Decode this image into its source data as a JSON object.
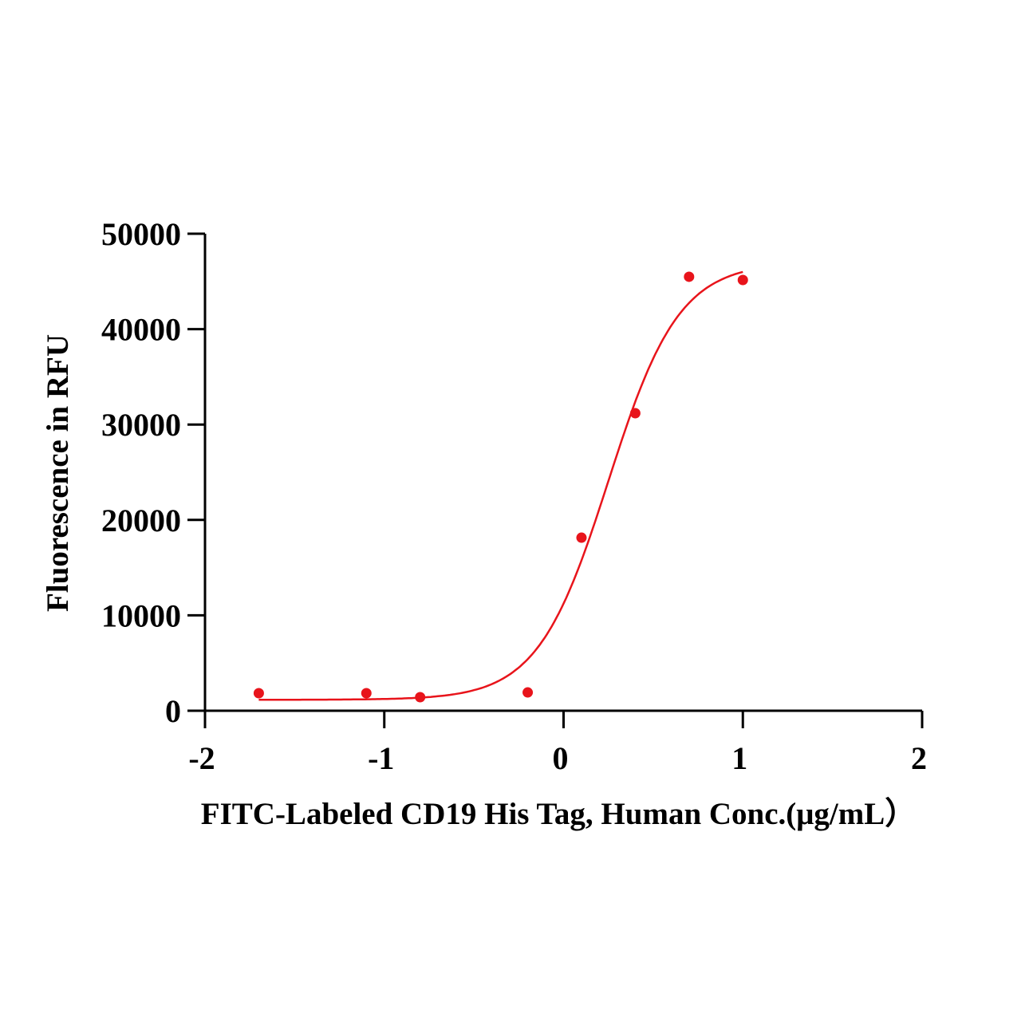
{
  "chart_data": {
    "type": "scatter",
    "title": "",
    "xlabel": "FITC-Labeled CD19 His Tag, Human  Conc.(μg/mL）",
    "ylabel": "Fluorescence in RFU",
    "xlim": [
      -2,
      2
    ],
    "ylim": [
      0,
      50000
    ],
    "xticks": [
      -2,
      -1,
      0,
      1,
      2
    ],
    "xtick_labels": [
      "-2",
      "-1",
      "0",
      "1",
      "2"
    ],
    "yticks": [
      0,
      10000,
      20000,
      30000,
      40000,
      50000
    ],
    "ytick_labels": [
      "0",
      "10000",
      "20000",
      "30000",
      "40000",
      "50000"
    ],
    "grid": false,
    "color": "#e8141b",
    "series": [
      {
        "name": "data",
        "x": [
          -1.7,
          -1.1,
          -0.8,
          -0.2,
          0.1,
          0.4,
          0.7,
          1.0
        ],
        "y": [
          1840,
          1840,
          1420,
          1920,
          18140,
          31190,
          45490,
          45150
        ]
      }
    ],
    "fit": {
      "model": "4PL",
      "bottom": 1150,
      "top": 47000,
      "logEC50": 0.25,
      "hill": 2.2,
      "x_range": [
        -1.7,
        1.0
      ]
    }
  }
}
